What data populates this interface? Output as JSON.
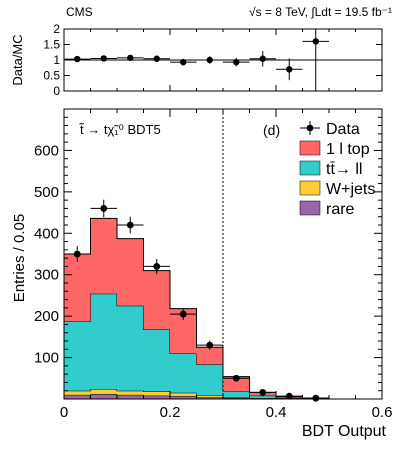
{
  "header": {
    "experiment": "CMS",
    "energy_lumi": "√s = 8 TeV, ∫Ldt = 19.5 fb⁻¹"
  },
  "chart_data": [
    {
      "id": "ratio",
      "type": "scatter",
      "ylabel": "Data/MC",
      "ylim": [
        0,
        2
      ],
      "yticks": [
        "0",
        "0.5",
        "1",
        "1.5",
        "2"
      ],
      "reference_line": 1,
      "points": [
        {
          "x": 0.025,
          "y": 1.03,
          "yerr": 0.09
        },
        {
          "x": 0.075,
          "y": 1.05,
          "yerr": 0.08
        },
        {
          "x": 0.125,
          "y": 1.07,
          "yerr": 0.08
        },
        {
          "x": 0.175,
          "y": 1.04,
          "yerr": 0.09
        },
        {
          "x": 0.225,
          "y": 0.93,
          "yerr": 0.11
        },
        {
          "x": 0.275,
          "y": 1.0,
          "yerr": 0.12
        },
        {
          "x": 0.325,
          "y": 0.93,
          "yerr": 0.14
        },
        {
          "x": 0.375,
          "y": 1.04,
          "yerr": 0.25
        },
        {
          "x": 0.425,
          "y": 0.7,
          "yerr": 0.35
        },
        {
          "x": 0.475,
          "y": 1.6,
          "yerr": 1.6
        }
      ]
    },
    {
      "id": "main",
      "type": "bar",
      "stacked": true,
      "xlabel": "BDT Output",
      "ylabel": "Entries / 0.05",
      "xlim": [
        0,
        0.6
      ],
      "ylim": [
        0,
        700
      ],
      "xticks": [
        "0",
        "0.2",
        "0.4",
        "0.6"
      ],
      "yticks": [
        "100",
        "200",
        "300",
        "400",
        "500",
        "600"
      ],
      "bin_edges": [
        0,
        0.05,
        0.1,
        0.15,
        0.2,
        0.25,
        0.3,
        0.35,
        0.4,
        0.45,
        0.5
      ],
      "cut_line_x": 0.3,
      "panel_label": "(d)",
      "signal_label": "t̃ → tχ̃₁⁰  BDT5",
      "series": [
        {
          "name": "rare",
          "color": "#9966aa",
          "values": [
            10,
            12,
            10,
            8,
            7,
            4,
            2,
            1,
            0,
            0
          ]
        },
        {
          "name": "W+jets",
          "color": "#ffcc33",
          "values": [
            10,
            12,
            10,
            10,
            8,
            5,
            2,
            1,
            0,
            0
          ]
        },
        {
          "name": "tt̄→ ll",
          "color": "#33cccc",
          "values": [
            168,
            230,
            205,
            150,
            95,
            75,
            15,
            6,
            2,
            1
          ]
        },
        {
          "name": "1 l top",
          "color": "#ff6666",
          "values": [
            162,
            182,
            162,
            142,
            108,
            41,
            35,
            8,
            3,
            1
          ]
        }
      ],
      "data": {
        "name": "Data",
        "x": [
          0.025,
          0.075,
          0.125,
          0.175,
          0.225,
          0.275,
          0.325,
          0.375,
          0.425,
          0.475
        ],
        "y": [
          350,
          460,
          420,
          320,
          205,
          130,
          50,
          16,
          7,
          2
        ],
        "yerr": [
          19,
          21,
          20,
          18,
          14,
          11,
          7,
          4,
          3,
          1.5
        ]
      },
      "legend": [
        "Data",
        "1 l top",
        "tt̄→ ll",
        "W+jets",
        "rare"
      ]
    }
  ]
}
